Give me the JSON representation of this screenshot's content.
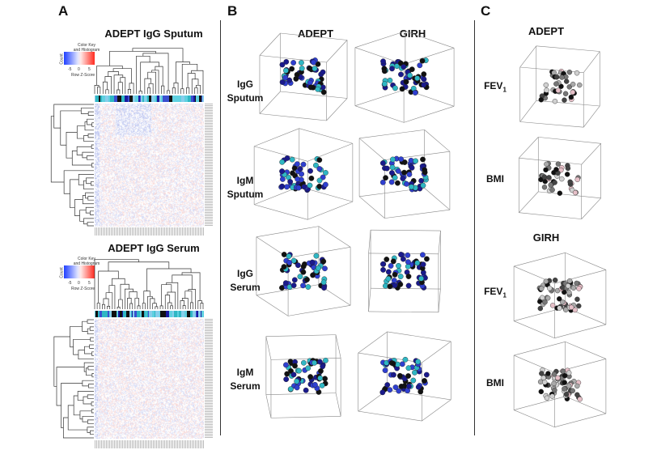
{
  "panels": {
    "a": {
      "letter": "A",
      "heatmaps": [
        {
          "title": "ADEPT IgG Sputum",
          "key_title": "Color Key\nand Histogram",
          "key_xlabel": "Row Z-Score",
          "key_ylabel": "Count",
          "key_ticks": [
            "-5",
            "0",
            "5"
          ]
        },
        {
          "title": "ADEPT IgG Serum",
          "key_title": "Color Key\nand Histogram",
          "key_xlabel": "Row Z-Score",
          "key_ylabel": "Count",
          "key_ticks": [
            "-5",
            "0",
            "5"
          ]
        }
      ]
    },
    "b": {
      "letter": "B",
      "columns": [
        "ADEPT",
        "GIRH"
      ],
      "rows": [
        "IgG\nSputum",
        "IgM\nSputum",
        "IgG\nSerum",
        "IgM\nSerum"
      ]
    },
    "c": {
      "letter": "C",
      "groups": [
        {
          "title": "ADEPT",
          "rows": [
            {
              "label": "FEV",
              "sub": "1"
            },
            {
              "label": "BMI",
              "sub": ""
            }
          ]
        },
        {
          "title": "GIRH",
          "rows": [
            {
              "label": "FEV",
              "sub": "1"
            },
            {
              "label": "BMI",
              "sub": ""
            }
          ]
        }
      ]
    }
  },
  "colors": {
    "black": "#111111",
    "navy": "#1a1a8c",
    "blue": "#2f3fd0",
    "teal": "#2fb7c4",
    "gray": "#9a9a9a",
    "heat_red": "#e85a4f",
    "heat_blue": "#4a62d8"
  }
}
